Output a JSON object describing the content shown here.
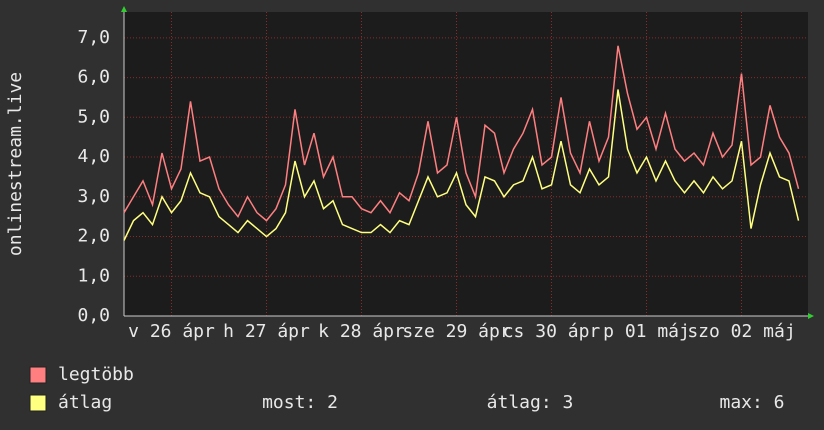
{
  "chart_data": {
    "type": "line",
    "ylabel": "onlinestream.live",
    "xlim": [
      0,
      7.2
    ],
    "ylim": [
      0,
      7.65
    ],
    "xticks": [
      {
        "value": 0.5,
        "label": "v 26 ápr"
      },
      {
        "value": 1.5,
        "label": "h 27 ápr"
      },
      {
        "value": 2.5,
        "label": "k 28 ápr"
      },
      {
        "value": 3.5,
        "label": "sze 29 ápr"
      },
      {
        "value": 4.5,
        "label": "cs 30 ápr"
      },
      {
        "value": 5.5,
        "label": "p 01 máj"
      },
      {
        "value": 6.5,
        "label": "szo 02 máj"
      }
    ],
    "yticks": [
      {
        "value": 0,
        "label": "0,0"
      },
      {
        "value": 1,
        "label": "1,0"
      },
      {
        "value": 2,
        "label": "2,0"
      },
      {
        "value": 3,
        "label": "3,0"
      },
      {
        "value": 4,
        "label": "4,0"
      },
      {
        "value": 5,
        "label": "5,0"
      },
      {
        "value": 6,
        "label": "6,0"
      },
      {
        "value": 7,
        "label": "7,0"
      }
    ],
    "grid": true,
    "x": [
      0,
      0.1,
      0.2,
      0.3,
      0.4,
      0.5,
      0.6,
      0.7,
      0.8,
      0.9,
      1,
      1.1,
      1.2,
      1.3,
      1.4,
      1.5,
      1.6,
      1.7,
      1.8,
      1.9,
      2,
      2.1,
      2.2,
      2.3,
      2.4,
      2.5,
      2.6,
      2.7,
      2.8,
      2.9,
      3,
      3.1,
      3.2,
      3.3,
      3.4,
      3.5,
      3.6,
      3.7,
      3.8,
      3.9,
      4,
      4.1,
      4.2,
      4.3,
      4.4,
      4.5,
      4.6,
      4.7,
      4.8,
      4.9,
      5,
      5.1,
      5.2,
      5.3,
      5.4,
      5.5,
      5.6,
      5.7,
      5.8,
      5.9,
      6,
      6.1,
      6.2,
      6.3,
      6.4,
      6.5,
      6.6,
      6.7,
      6.8,
      6.9,
      7,
      7.1
    ],
    "series": [
      {
        "name": "legtöbb",
        "color": "#ff7f80",
        "values": [
          2.6,
          3.0,
          3.4,
          2.8,
          4.1,
          3.2,
          3.7,
          5.4,
          3.9,
          4.0,
          3.2,
          2.8,
          2.5,
          3.0,
          2.6,
          2.4,
          2.7,
          3.3,
          5.2,
          3.8,
          4.6,
          3.5,
          4.0,
          3.0,
          3.0,
          2.7,
          2.6,
          2.9,
          2.6,
          3.1,
          2.9,
          3.6,
          4.9,
          3.6,
          3.8,
          5.0,
          3.6,
          3.0,
          4.8,
          4.6,
          3.6,
          4.2,
          4.6,
          5.2,
          3.8,
          4.0,
          5.5,
          4.1,
          3.6,
          4.9,
          3.9,
          4.5,
          6.8,
          5.6,
          4.7,
          5.0,
          4.2,
          5.1,
          4.2,
          3.9,
          4.1,
          3.8,
          4.6,
          4.0,
          4.3,
          6.1,
          3.8,
          4.0,
          5.3,
          4.5,
          4.1,
          3.2
        ]
      },
      {
        "name": "átlag",
        "color": "#ffff80",
        "values": [
          1.9,
          2.4,
          2.6,
          2.3,
          3.0,
          2.6,
          2.9,
          3.6,
          3.1,
          3.0,
          2.5,
          2.3,
          2.1,
          2.4,
          2.2,
          2.0,
          2.2,
          2.6,
          3.9,
          3.0,
          3.4,
          2.7,
          2.9,
          2.3,
          2.2,
          2.1,
          2.1,
          2.3,
          2.1,
          2.4,
          2.3,
          2.9,
          3.5,
          3.0,
          3.1,
          3.6,
          2.8,
          2.5,
          3.5,
          3.4,
          3.0,
          3.3,
          3.4,
          4.0,
          3.2,
          3.3,
          4.4,
          3.3,
          3.1,
          3.7,
          3.3,
          3.5,
          5.7,
          4.2,
          3.6,
          4.0,
          3.4,
          3.9,
          3.4,
          3.1,
          3.4,
          3.1,
          3.5,
          3.2,
          3.4,
          4.4,
          2.2,
          3.3,
          4.1,
          3.5,
          3.4,
          2.4
        ]
      }
    ],
    "legend_stats": [
      "most: 2",
      "átlag: 3",
      "max: 6"
    ]
  }
}
